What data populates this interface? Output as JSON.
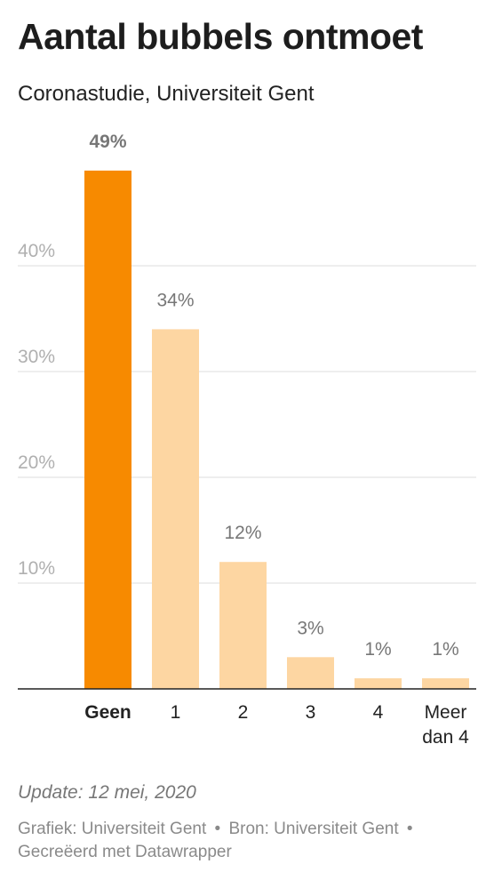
{
  "header": {
    "title": "Aantal bubbels ontmoet",
    "subtitle": "Coronastudie, Universiteit Gent"
  },
  "footer": {
    "update": "Update: 12 mei, 2020",
    "grafiek": "Grafiek: Universiteit Gent",
    "bron": "Bron: Universiteit Gent",
    "credit": "Gecreëerd met Datawrapper",
    "separator": "•"
  },
  "colors": {
    "highlight": "#f78a00",
    "bar": "#fdd6a2",
    "grid": "#dddddd",
    "axis": "#222222",
    "tick_label": "#b0b0b0",
    "value_label": "#777777"
  },
  "chart_data": {
    "type": "bar",
    "categories": [
      "Geen",
      "1",
      "2",
      "3",
      "4",
      "Meer dan 4"
    ],
    "values": [
      49,
      34,
      12,
      3,
      1,
      1
    ],
    "value_labels": [
      "49%",
      "34%",
      "12%",
      "3%",
      "1%",
      "1%"
    ],
    "highlight_index": 0,
    "ylim": [
      0,
      50
    ],
    "yticks": [
      10,
      20,
      30,
      40
    ],
    "ytick_labels": [
      "10%",
      "20%",
      "30%",
      "40%"
    ],
    "grid": true,
    "title": "Aantal bubbels ontmoet",
    "subtitle": "Coronastudie, Universiteit Gent",
    "xlabel": "",
    "ylabel": ""
  }
}
